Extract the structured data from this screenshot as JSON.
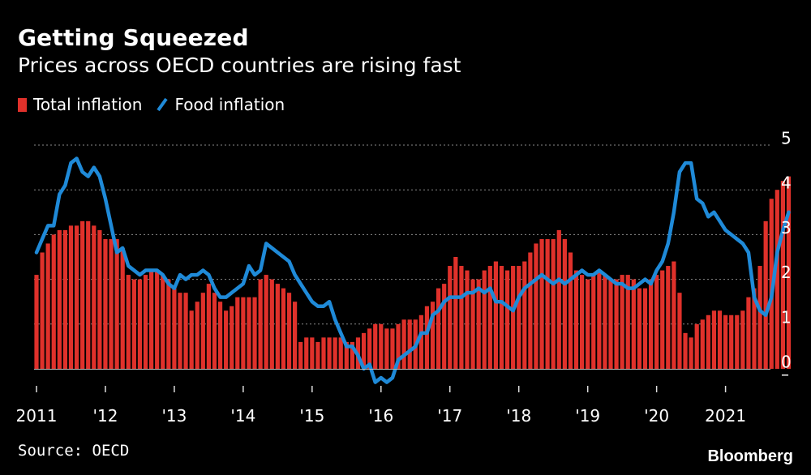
{
  "header": {
    "title": "Getting Squeezed",
    "subtitle": "Prices across OECD countries are rising fast"
  },
  "legend": {
    "total_label": "Total inflation",
    "food_label": "Food inflation"
  },
  "footer": {
    "source": "Source: OECD",
    "brand": "Bloomberg"
  },
  "colors": {
    "bar": "#e0312b",
    "line": "#1f8ad8",
    "grid": "#8a8a8a",
    "background": "#000000",
    "text": "#ffffff"
  },
  "chart_data": {
    "type": "bar",
    "title": "Getting Squeezed",
    "subtitle": "Prices across OECD countries are rising fast",
    "x_tick_labels": [
      "2011",
      "'12",
      "'13",
      "'14",
      "'15",
      "'16",
      "'17",
      "'18",
      "'19",
      "'20",
      "2021"
    ],
    "y_tick_labels": [
      "5",
      "4",
      "3",
      "2",
      "1",
      "0",
      "–"
    ],
    "ylim": [
      -0.1,
      5
    ],
    "y_axis_position": "right",
    "grid": true,
    "legend_position": "top-left",
    "series": [
      {
        "name": "Total inflation",
        "type": "bar",
        "start": "2011-01",
        "frequency": "monthly",
        "values": [
          2.1,
          2.6,
          2.8,
          3.0,
          3.1,
          3.1,
          3.2,
          3.2,
          3.3,
          3.3,
          3.2,
          3.1,
          2.9,
          2.9,
          2.9,
          2.7,
          2.1,
          2.0,
          2.0,
          2.1,
          2.2,
          2.2,
          2.1,
          2.0,
          1.8,
          1.7,
          1.7,
          1.3,
          1.5,
          1.7,
          1.9,
          1.7,
          1.5,
          1.3,
          1.4,
          1.6,
          1.6,
          1.6,
          1.6,
          2.0,
          2.1,
          2.0,
          1.9,
          1.8,
          1.7,
          1.5,
          0.6,
          0.7,
          0.7,
          0.6,
          0.7,
          0.7,
          0.7,
          0.7,
          0.6,
          0.6,
          0.7,
          0.8,
          0.9,
          1.0,
          1.0,
          0.9,
          0.9,
          1.0,
          1.1,
          1.1,
          1.1,
          1.2,
          1.4,
          1.5,
          1.8,
          1.9,
          2.3,
          2.5,
          2.3,
          2.2,
          2.0,
          2.0,
          2.2,
          2.3,
          2.4,
          2.3,
          2.2,
          2.3,
          2.3,
          2.4,
          2.6,
          2.8,
          2.9,
          2.9,
          2.9,
          3.1,
          2.9,
          2.6,
          2.2,
          2.1,
          2.0,
          2.1,
          2.2,
          2.1,
          2.0,
          2.0,
          2.1,
          2.1,
          2.0,
          1.8,
          1.8,
          2.0,
          2.1,
          2.2,
          2.3,
          2.4,
          1.7,
          0.8,
          0.7,
          1.0,
          1.1,
          1.2,
          1.3,
          1.3,
          1.2,
          1.2,
          1.2,
          1.3,
          1.6,
          1.8,
          2.3,
          3.3,
          3.8,
          4.0,
          4.2,
          4.3
        ],
        "color": "#e0312b"
      },
      {
        "name": "Food inflation",
        "type": "line",
        "start": "2011-01",
        "frequency": "monthly",
        "values": [
          2.6,
          2.9,
          3.2,
          3.2,
          3.9,
          4.1,
          4.6,
          4.7,
          4.4,
          4.3,
          4.5,
          4.3,
          3.8,
          3.2,
          2.6,
          2.7,
          2.3,
          2.2,
          2.1,
          2.2,
          2.2,
          2.2,
          2.1,
          1.9,
          1.8,
          2.1,
          2.0,
          2.1,
          2.1,
          2.2,
          2.1,
          1.8,
          1.6,
          1.6,
          1.7,
          1.8,
          1.9,
          2.3,
          2.1,
          2.2,
          2.8,
          2.7,
          2.6,
          2.5,
          2.4,
          2.1,
          1.9,
          1.7,
          1.5,
          1.4,
          1.4,
          1.5,
          1.1,
          0.8,
          0.5,
          0.5,
          0.3,
          0.0,
          0.1,
          -0.3,
          -0.2,
          -0.3,
          -0.2,
          0.2,
          0.3,
          0.4,
          0.5,
          0.8,
          0.8,
          1.2,
          1.3,
          1.5,
          1.6,
          1.6,
          1.6,
          1.7,
          1.7,
          1.8,
          1.7,
          1.8,
          1.5,
          1.5,
          1.4,
          1.3,
          1.6,
          1.8,
          1.9,
          2.0,
          2.1,
          2.0,
          1.9,
          2.0,
          1.9,
          2.0,
          2.1,
          2.2,
          2.1,
          2.1,
          2.2,
          2.1,
          2.0,
          1.9,
          1.9,
          1.8,
          1.8,
          1.9,
          2.0,
          1.9,
          2.2,
          2.4,
          2.8,
          3.5,
          4.4,
          4.6,
          4.6,
          3.8,
          3.7,
          3.4,
          3.5,
          3.3,
          3.1,
          3.0,
          2.9,
          2.8,
          2.6,
          1.6,
          1.3,
          1.2,
          1.6,
          2.6,
          3.1,
          3.5
        ]
      }
    ]
  }
}
